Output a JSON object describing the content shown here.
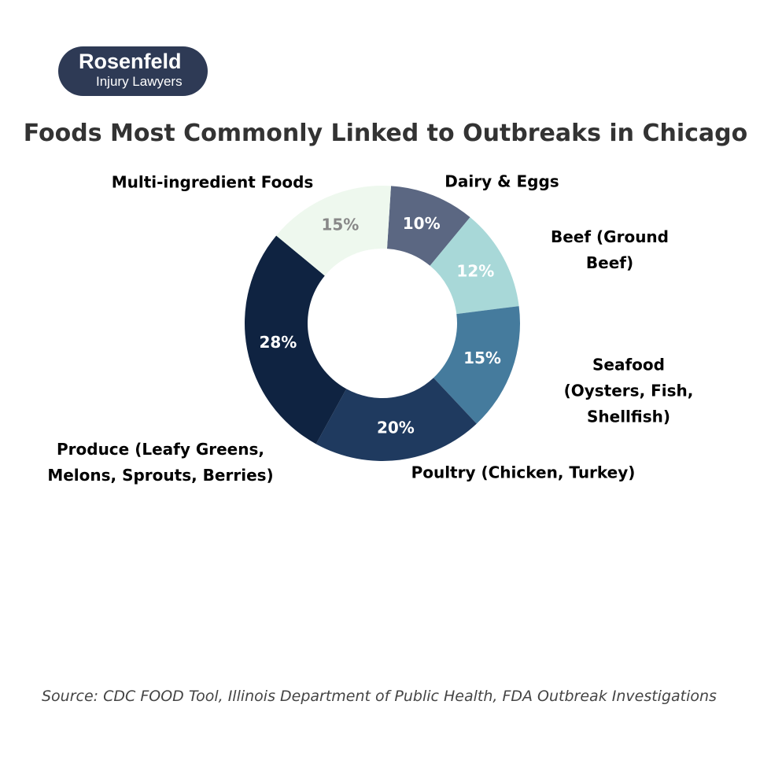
{
  "logo": {
    "name": "Rosenfeld",
    "tagline": "Injury Lawyers"
  },
  "chart_data": {
    "type": "donut",
    "title": "Foods Most Commonly Linked to Outbreaks in Chicago",
    "categories": [
      "Dairy & Eggs",
      "Beef (Ground Beef)",
      "Seafood\n(Oysters, Fish, Shellfish)",
      "Poultry (Chicken, Turkey)",
      "Produce (Leafy Greens,\nMelons, Sprouts, Berries)",
      "Multi-ingredient Foods"
    ],
    "values": [
      10,
      12,
      15,
      20,
      28,
      15
    ],
    "value_labels": [
      "10%",
      "12%",
      "15%",
      "20%",
      "28%",
      "15%"
    ],
    "colors": [
      "#5b6782",
      "#a8d8d8",
      "#457b9d",
      "#1f3a5f",
      "#0f2341",
      "#eef8ee"
    ],
    "label_colors": [
      "#ffffff",
      "#ffffff",
      "#ffffff",
      "#ffffff",
      "#ffffff",
      "#888888"
    ],
    "source": "Source: CDC FOOD Tool, Illinois Department of Public Health, FDA Outbreak Investigations"
  }
}
